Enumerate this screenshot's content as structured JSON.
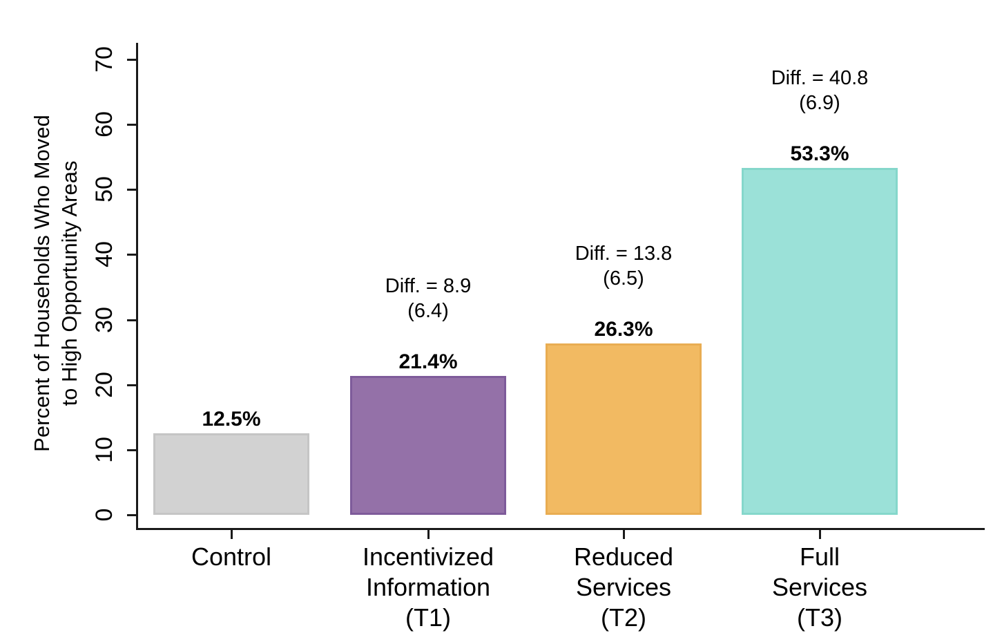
{
  "chart_data": {
    "type": "bar",
    "title": "",
    "ylabel": "Percent of Households Who Moved\nto High Opportunity Areas",
    "xlabel": "",
    "ylim": [
      0,
      70
    ],
    "yticks": [
      0,
      10,
      20,
      30,
      40,
      50,
      60,
      70
    ],
    "ytick_label_rotation_deg": 90,
    "grid": false,
    "legend": "none",
    "axis_color": "#1a1a1a",
    "categories": [
      "Control",
      "Incentivized\nInformation\n(T1)",
      "Reduced\nServices\n(T2)",
      "Full\nServices\n(T3)"
    ],
    "values": [
      12.5,
      21.4,
      26.3,
      53.3
    ],
    "bars": [
      {
        "category": "Control",
        "value": 12.5,
        "value_label": "12.5%",
        "diff_label": null,
        "se_label": null,
        "fill": "#d2d2d2",
        "stroke": "#c5c5c5"
      },
      {
        "category": "Incentivized Information (T1)",
        "value": 21.4,
        "value_label": "21.4%",
        "diff_label": "Diff. = 8.9",
        "se_label": "(6.4)",
        "fill": "#9471a8",
        "stroke": "#7e5b9a"
      },
      {
        "category": "Reduced Services (T2)",
        "value": 26.3,
        "value_label": "26.3%",
        "diff_label": "Diff. = 13.8",
        "se_label": "(6.5)",
        "fill": "#f2ba62",
        "stroke": "#e9ad52"
      },
      {
        "category": "Full Services (T3)",
        "value": 53.3,
        "value_label": "53.3%",
        "diff_label": "Diff. = 40.8",
        "se_label": "(6.9)",
        "fill": "#9be1d8",
        "stroke": "#85d7cb"
      }
    ]
  }
}
